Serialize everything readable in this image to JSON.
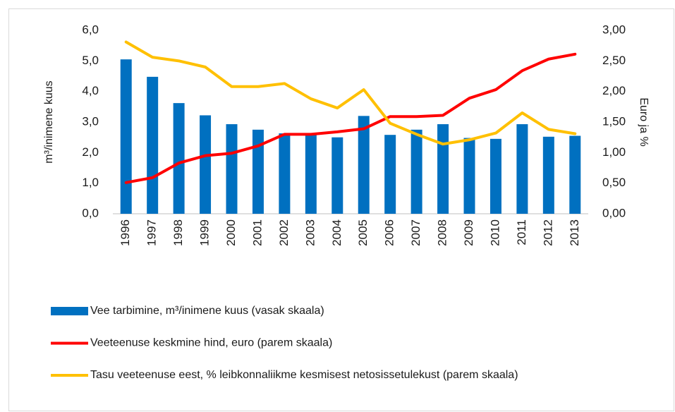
{
  "chart_data": {
    "type": "bar_line",
    "y_label": "m³/inimene kuus",
    "y2_label": "Euro ja %",
    "categories": [
      "1996",
      "1997",
      "1998",
      "1999",
      "2000",
      "2001",
      "2002",
      "2003",
      "2004",
      "2005",
      "2006",
      "2007",
      "2008",
      "2009",
      "2010",
      "2011",
      "2012",
      "2013"
    ],
    "series": [
      {
        "name": "Vee tarbimine, m³/inimene kuus (vasak skaala)",
        "type": "bar",
        "color": "#0070c0",
        "values": [
          5.05,
          4.48,
          3.62,
          3.22,
          2.93,
          2.75,
          2.63,
          2.62,
          2.5,
          3.2,
          2.58,
          2.75,
          2.93,
          2.48,
          2.45,
          2.93,
          2.52,
          2.55
        ]
      },
      {
        "name": "Veeteenuse keskmine hind, euro (parem skaala)",
        "type": "line",
        "axis": "y2",
        "color": "#ff0000",
        "values": [
          0.51,
          0.59,
          0.83,
          0.95,
          0.99,
          1.11,
          1.3,
          1.3,
          1.34,
          1.39,
          1.59,
          1.59,
          1.61,
          1.89,
          2.03,
          2.34,
          2.53,
          2.61
        ]
      },
      {
        "name": "Tasu veeteenuse eest, % leibkonnaliikme kesmisest netosissetulekust (parem skaala)",
        "type": "line",
        "axis": "y2",
        "color": "#ffc000",
        "values": [
          2.81,
          2.56,
          2.5,
          2.4,
          2.08,
          2.08,
          2.13,
          1.88,
          1.73,
          2.03,
          1.48,
          1.3,
          1.14,
          1.21,
          1.32,
          1.65,
          1.38,
          1.31
        ]
      }
    ],
    "ylim": [
      0,
      6
    ],
    "yticks": [
      {
        "value": 0,
        "label": "0,0"
      },
      {
        "value": 1,
        "label": "1,0"
      },
      {
        "value": 2,
        "label": "2,0"
      },
      {
        "value": 3,
        "label": "3,0"
      },
      {
        "value": 4,
        "label": "4,0"
      },
      {
        "value": 5,
        "label": "5,0"
      },
      {
        "value": 6,
        "label": "6,0"
      }
    ],
    "y2lim": [
      0,
      3
    ],
    "y2ticks": [
      {
        "value": 0,
        "label": "0,00"
      },
      {
        "value": 0.5,
        "label": "0,50"
      },
      {
        "value": 1,
        "label": "1,00"
      },
      {
        "value": 1.5,
        "label": "1,50"
      },
      {
        "value": 2,
        "label": "2,00"
      },
      {
        "value": 2.5,
        "label": "2,50"
      },
      {
        "value": 3,
        "label": "3,00"
      }
    ],
    "legend": "bottom"
  }
}
